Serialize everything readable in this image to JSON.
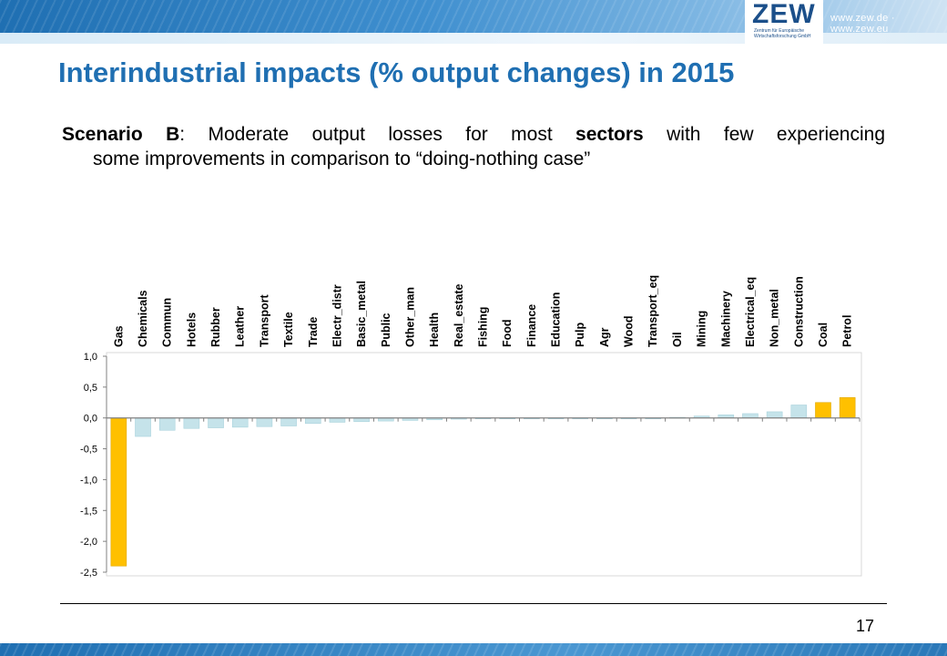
{
  "header": {
    "logo_text": "ZEW",
    "logo_subtext": "Zentrum für Europäische Wirtschaftsforschung GmbH",
    "site_url": "www.zew.de · www.zew.eu"
  },
  "slide": {
    "title": "Interindustrial impacts (% output changes) in 2015",
    "subtitle_bold_1": "Scenario B",
    "subtitle_text_1": ": Moderate output losses for most ",
    "subtitle_bold_2": "sectors",
    "subtitle_text_2": " with few experiencing",
    "subtitle_line_2": "some improvements in comparison to “doing-nothing case”",
    "page_number": "17"
  },
  "chart_data": {
    "type": "bar",
    "categories": [
      "Gas",
      "Chemicals",
      "Commun",
      "Hotels",
      "Rubber",
      "Leather",
      "Transport",
      "Textile",
      "Trade",
      "Electr_distr",
      "Basic_metal",
      "Public",
      "Other_man",
      "Health",
      "Real_estate",
      "Fishing",
      "Food",
      "Finance",
      "Education",
      "Pulp",
      "Agr",
      "Wood",
      "Transport_eq",
      "Oil",
      "Mining",
      "Machinery",
      "Electrical_eq",
      "Non_metal",
      "Construction",
      "Coal",
      "Petrol"
    ],
    "values": [
      -2.4,
      -0.3,
      -0.2,
      -0.17,
      -0.16,
      -0.15,
      -0.14,
      -0.13,
      -0.09,
      -0.07,
      -0.06,
      -0.05,
      -0.04,
      -0.03,
      -0.02,
      -0.01,
      -0.01,
      -0.01,
      -0.01,
      -0.01,
      -0.01,
      -0.01,
      -0.01,
      0.01,
      0.03,
      0.05,
      0.07,
      0.1,
      0.21,
      0.25,
      0.33
    ],
    "highlight": [
      "Gas",
      "Coal",
      "Petrol"
    ],
    "yticks": [
      "1,0",
      "0,5",
      "0,0",
      "-0,5",
      "-1,0",
      "-1,5",
      "-2,0",
      "-2,5"
    ],
    "ytick_values": [
      1.0,
      0.5,
      0.0,
      -0.5,
      -1.0,
      -1.5,
      -2.0,
      -2.5
    ],
    "ylim": [
      -2.5,
      1.0
    ],
    "colors": {
      "highlight": "#ffc000",
      "highlight_edge": "#e0a800",
      "default": "#c5e3ea",
      "default_edge": "#a9d2dc",
      "axis": "#808080",
      "grid_border": "#d9d9d9"
    },
    "title": "",
    "xlabel": "",
    "ylabel": ""
  }
}
